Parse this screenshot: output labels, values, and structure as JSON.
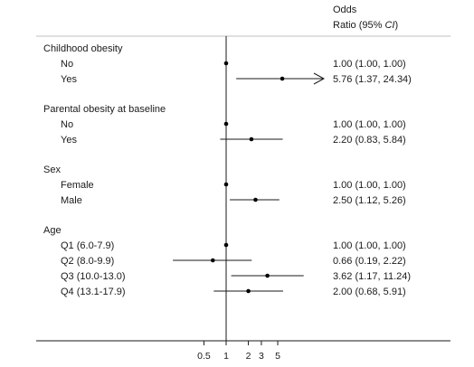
{
  "chart_data": {
    "type": "forest",
    "x_scale": "log",
    "reference_line": 1,
    "xlim": [
      0.3,
      9
    ],
    "x_ticks": [
      "0.5",
      "1",
      "2",
      "3",
      "5"
    ],
    "header": {
      "line1": "Odds",
      "line2_text": "Ratio (95% ",
      "line2_italic": "CI",
      "line2_end": ")"
    },
    "groups": [
      {
        "title": "Childhood obesity",
        "rows": [
          {
            "label": "No",
            "or": 1.0,
            "lo": 1.0,
            "hi": 1.0,
            "text": "1.00 (1.00, 1.00)"
          },
          {
            "label": "Yes",
            "or": 5.76,
            "lo": 1.37,
            "hi": 24.34,
            "text": "5.76 (1.37, 24.34)",
            "arrow": true
          }
        ]
      },
      {
        "title": "Parental obesity at baseline",
        "rows": [
          {
            "label": "No",
            "or": 1.0,
            "lo": 1.0,
            "hi": 1.0,
            "text": "1.00 (1.00, 1.00)"
          },
          {
            "label": "Yes",
            "or": 2.2,
            "lo": 0.83,
            "hi": 5.84,
            "text": "2.20 (0.83, 5.84)"
          }
        ]
      },
      {
        "title": "Sex",
        "rows": [
          {
            "label": "Female",
            "or": 1.0,
            "lo": 1.0,
            "hi": 1.0,
            "text": "1.00 (1.00, 1.00)"
          },
          {
            "label": "Male",
            "or": 2.5,
            "lo": 1.12,
            "hi": 5.26,
            "text": "2.50 (1.12, 5.26)"
          }
        ]
      },
      {
        "title": "Age",
        "rows": [
          {
            "label": "Q1 (6.0-7.9)",
            "or": 1.0,
            "lo": 1.0,
            "hi": 1.0,
            "text": "1.00 (1.00, 1.00)"
          },
          {
            "label": "Q2 (8.0-9.9)",
            "or": 0.66,
            "lo": 0.19,
            "hi": 2.22,
            "text": "0.66 (0.19, 2.22)"
          },
          {
            "label": "Q3 (10.0-13.0)",
            "or": 3.62,
            "lo": 1.17,
            "hi": 11.24,
            "text": "3.62 (1.17, 11.24)"
          },
          {
            "label": "Q4 (13.1-17.9)",
            "or": 2.0,
            "lo": 0.68,
            "hi": 5.91,
            "text": "2.00 (0.68, 5.91)"
          }
        ]
      }
    ]
  }
}
